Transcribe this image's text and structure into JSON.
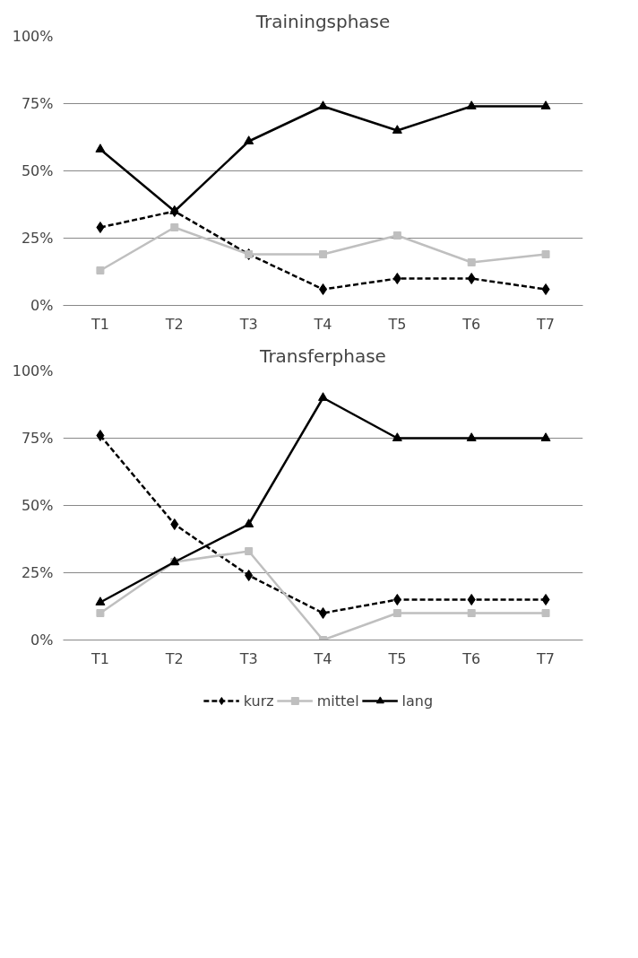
{
  "chart_data": [
    {
      "type": "line",
      "title": "Trainingsphase",
      "categories": [
        "T1",
        "T2",
        "T3",
        "T4",
        "T5",
        "T6",
        "T7"
      ],
      "series": [
        {
          "color": "#000000",
          "marker": "diamond",
          "line_style": "dashed",
          "values": [
            29,
            35,
            19,
            6,
            10,
            10,
            6
          ]
        },
        {
          "color": "#bfbfbf",
          "marker": "square",
          "line_style": "solid",
          "values": [
            13,
            29,
            19,
            19,
            26,
            16,
            19
          ]
        },
        {
          "color": "#000000",
          "marker": "triangle",
          "line_style": "solid",
          "values": [
            58,
            35,
            61,
            74,
            65,
            74,
            74
          ]
        }
      ],
      "ylim": [
        0,
        100
      ],
      "yticks": [
        {
          "value": 0,
          "label": "0%"
        },
        {
          "value": 25,
          "label": "25%"
        },
        {
          "value": 50,
          "label": "50%"
        },
        {
          "value": 75,
          "label": "75%"
        },
        {
          "value": 100,
          "label": "100%"
        }
      ],
      "grid": "y"
    },
    {
      "type": "line",
      "title": "Transferphase",
      "categories": [
        "T1",
        "T2",
        "T3",
        "T4",
        "T5",
        "T6",
        "T7"
      ],
      "series": [
        {
          "name": "kurz",
          "color": "#000000",
          "marker": "diamond",
          "line_style": "dashed",
          "values": [
            76,
            43,
            24,
            10,
            15,
            15,
            15
          ]
        },
        {
          "name": "mittel",
          "color": "#bfbfbf",
          "marker": "square",
          "line_style": "solid",
          "values": [
            10,
            29,
            33,
            0,
            10,
            10,
            10
          ]
        },
        {
          "name": "lang",
          "color": "#000000",
          "marker": "triangle",
          "line_style": "solid",
          "values": [
            14,
            29,
            43,
            90,
            75,
            75,
            75
          ]
        }
      ],
      "ylim": [
        0,
        100
      ],
      "yticks": [
        {
          "value": 0,
          "label": "0%"
        },
        {
          "value": 25,
          "label": "25%"
        },
        {
          "value": 50,
          "label": "50%"
        },
        {
          "value": 75,
          "label": "75%"
        },
        {
          "value": 100,
          "label": "100%"
        }
      ],
      "grid": "y",
      "legend": "bottom"
    }
  ]
}
